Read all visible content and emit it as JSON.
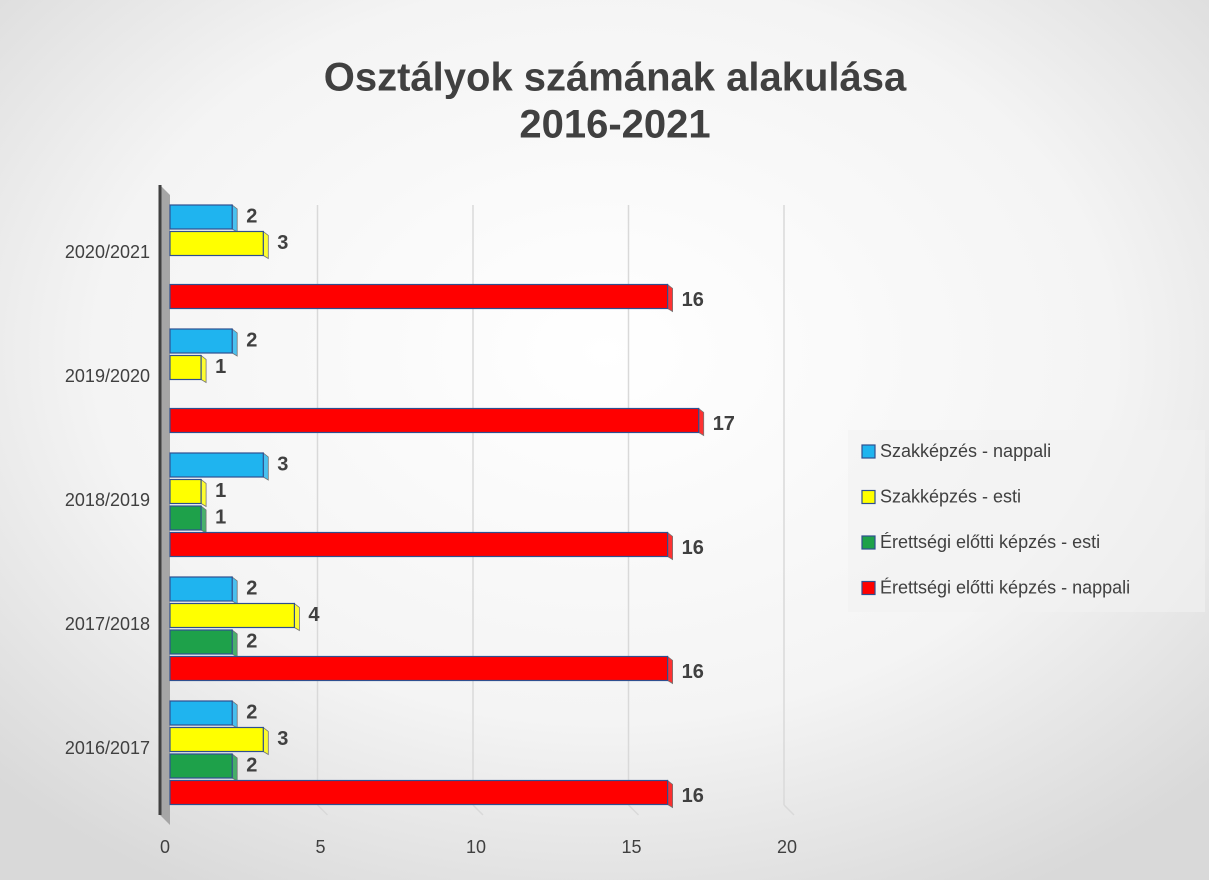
{
  "chart_data": {
    "type": "bar",
    "orientation": "horizontal",
    "title": [
      "Osztályok számának alakulása",
      "2016-2021"
    ],
    "categories": [
      "2016/2017",
      "2017/2018",
      "2018/2019",
      "2019/2020",
      "2020/2021"
    ],
    "series": [
      {
        "name": "Szakképzés - nappali",
        "color": "#1fb4ef",
        "values": [
          2,
          2,
          3,
          2,
          2
        ]
      },
      {
        "name": "Szakképzés - esti",
        "color": "#ffff00",
        "values": [
          3,
          4,
          1,
          1,
          3
        ]
      },
      {
        "name": "Érettségi előtti képzés - esti",
        "color": "#1ea14a",
        "values": [
          2,
          2,
          1,
          null,
          null
        ]
      },
      {
        "name": "Érettségi előtti képzés -  nappali",
        "color": "#ff0000",
        "values": [
          16,
          16,
          16,
          17,
          16
        ]
      }
    ],
    "xlim": [
      0,
      20
    ],
    "xticks": [
      0,
      5,
      10,
      15,
      20
    ],
    "grid": true,
    "legend": "right"
  }
}
